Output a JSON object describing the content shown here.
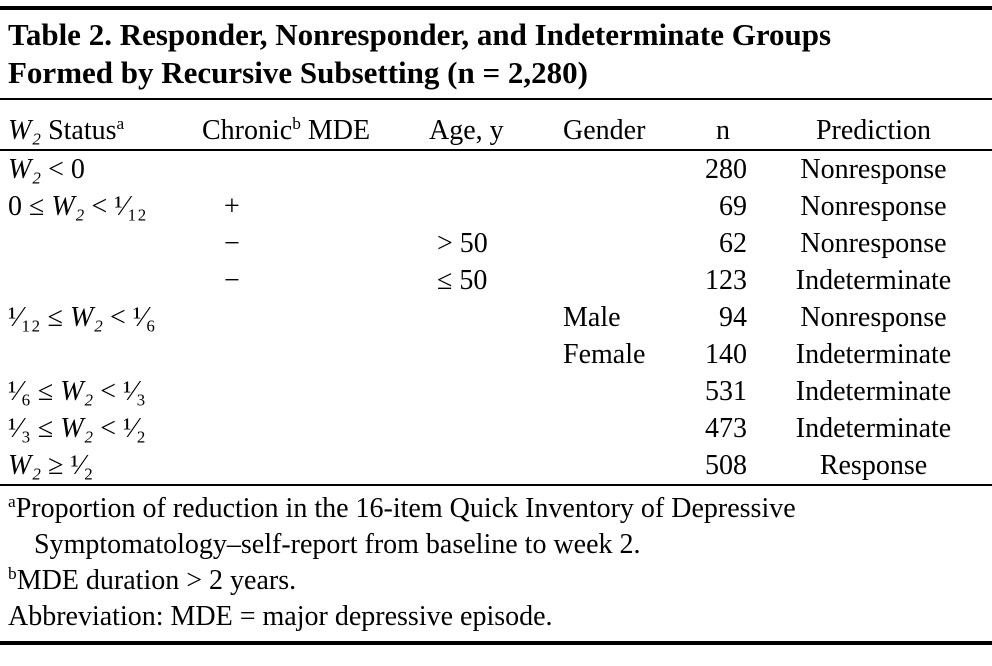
{
  "page": {
    "background": "#ffffff",
    "text_color": "#000000",
    "rule_color": "#000000"
  },
  "table": {
    "title_line1": "Table 2. Responder, Nonresponder, and Indeterminate Groups",
    "title_line2": "Formed by Recursive Subsetting (n = 2,280)",
    "header": {
      "status": {
        "w": "W₂",
        "rest": " Status",
        "sup": "a"
      },
      "chronic": {
        "pre": "Chronic",
        "sup": "b",
        "post": " MDE"
      },
      "age": "Age, y",
      "gender": "Gender",
      "n": "n",
      "prediction": "Prediction"
    },
    "rows": [
      {
        "status": {
          "pre": "",
          "w": "W₂",
          "post": " < 0"
        },
        "chronic": "",
        "age": "",
        "gender": "",
        "n": "280",
        "prediction": "Nonresponse"
      },
      {
        "status": {
          "pre": "0 ≤ ",
          "w": "W₂",
          "post": " < ¹⁄₁₂"
        },
        "chronic": "+",
        "age": "",
        "gender": "",
        "n": "69",
        "prediction": "Nonresponse"
      },
      {
        "status": {
          "pre": "",
          "w": "",
          "post": ""
        },
        "chronic": "−",
        "age": "> 50",
        "gender": "",
        "n": "62",
        "prediction": "Nonresponse"
      },
      {
        "status": {
          "pre": "",
          "w": "",
          "post": ""
        },
        "chronic": "−",
        "age": "≤ 50",
        "gender": "",
        "n": "123",
        "prediction": "Indeterminate"
      },
      {
        "status": {
          "pre": "¹⁄₁₂ ≤ ",
          "w": "W₂",
          "post": " < ¹⁄₆"
        },
        "chronic": "",
        "age": "",
        "gender": "Male",
        "n": "94",
        "prediction": "Nonresponse"
      },
      {
        "status": {
          "pre": "",
          "w": "",
          "post": ""
        },
        "chronic": "",
        "age": "",
        "gender": "Female",
        "n": "140",
        "prediction": "Indeterminate"
      },
      {
        "status": {
          "pre": "¹⁄₆ ≤ ",
          "w": "W₂",
          "post": " < ¹⁄₃"
        },
        "chronic": "",
        "age": "",
        "gender": "",
        "n": "531",
        "prediction": "Indeterminate"
      },
      {
        "status": {
          "pre": "¹⁄₃ ≤ ",
          "w": "W₂",
          "post": " < ¹⁄₂"
        },
        "chronic": "",
        "age": "",
        "gender": "",
        "n": "473",
        "prediction": "Indeterminate"
      },
      {
        "status": {
          "pre": "",
          "w": "W₂",
          "post": " ≥ ¹⁄₂"
        },
        "chronic": "",
        "age": "",
        "gender": "",
        "n": "508",
        "prediction": "Response"
      }
    ],
    "footnotes": [
      {
        "sup": "a",
        "text": "Proportion of reduction in the 16-item Quick Inventory of Depressive Symptomatology–self-report from baseline to week 2."
      },
      {
        "sup": "b",
        "text": "MDE duration > 2 years."
      },
      {
        "sup": "",
        "text": "Abbreviation: MDE = major depressive episode."
      }
    ]
  }
}
